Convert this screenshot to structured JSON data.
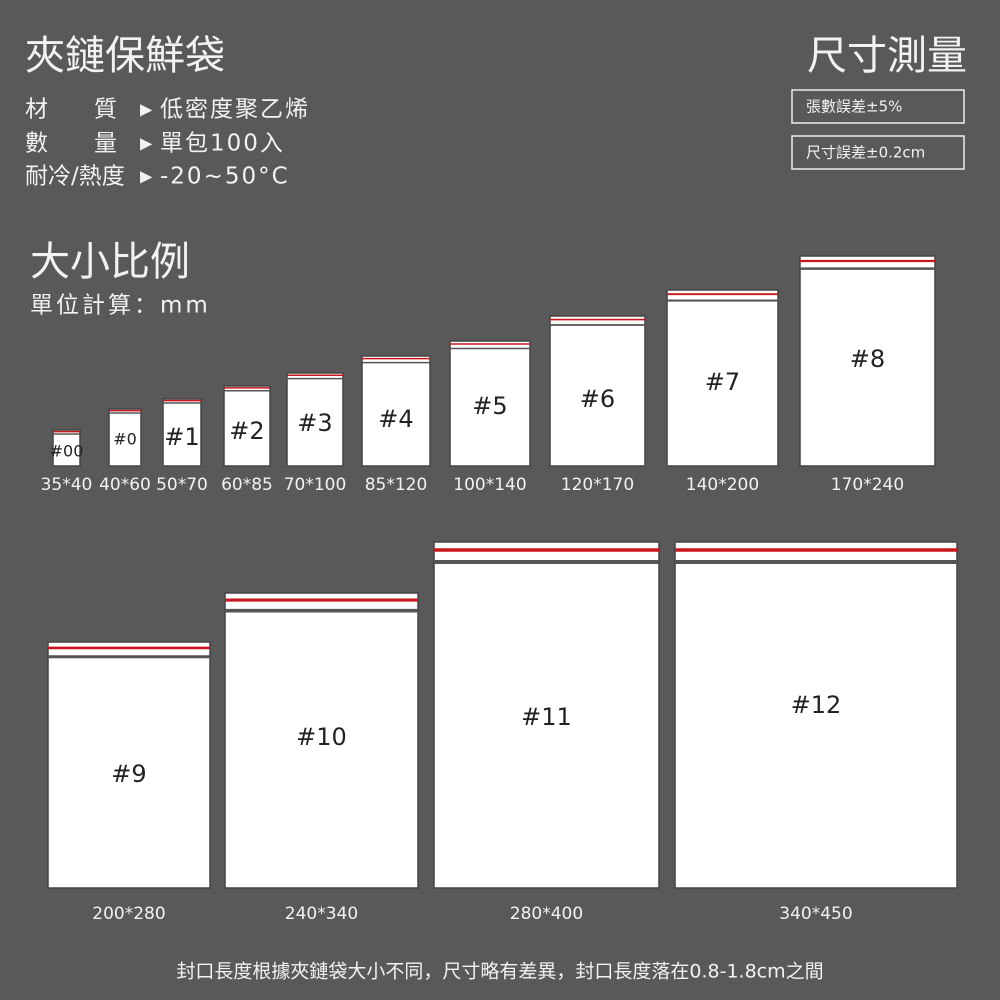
{
  "header": {
    "title": "夾鏈保鮮袋",
    "specs": [
      {
        "label": "材　　質",
        "value": "低密度聚乙烯"
      },
      {
        "label": "數　　量",
        "value": "單包100入"
      },
      {
        "label": "耐冷/熱度",
        "value": "-20~50°C"
      }
    ]
  },
  "measure": {
    "title": "尺寸測量",
    "notes": [
      "張數誤差±5%",
      "尺寸誤差±0.2cm"
    ]
  },
  "scale": {
    "title": "大小比例",
    "unit": "單位計算：mm"
  },
  "bags": [
    {
      "label": "#00",
      "size": "35*40"
    },
    {
      "label": "#0",
      "size": "40*60"
    },
    {
      "label": "#1",
      "size": "50*70"
    },
    {
      "label": "#2",
      "size": "60*85"
    },
    {
      "label": "#3",
      "size": "70*100"
    },
    {
      "label": "#4",
      "size": "85*120"
    },
    {
      "label": "#5",
      "size": "100*140"
    },
    {
      "label": "#6",
      "size": "120*170"
    },
    {
      "label": "#7",
      "size": "140*200"
    },
    {
      "label": "#8",
      "size": "170*240"
    },
    {
      "label": "#9",
      "size": "200*280"
    },
    {
      "label": "#10",
      "size": "240*340"
    },
    {
      "label": "#11",
      "size": "280*400"
    },
    {
      "label": "#12",
      "size": "340*450"
    }
  ],
  "footer": "封口長度根據夾鏈袋大小不同，尺寸略有差異，封口長度落在0.8-1.8cm之間"
}
